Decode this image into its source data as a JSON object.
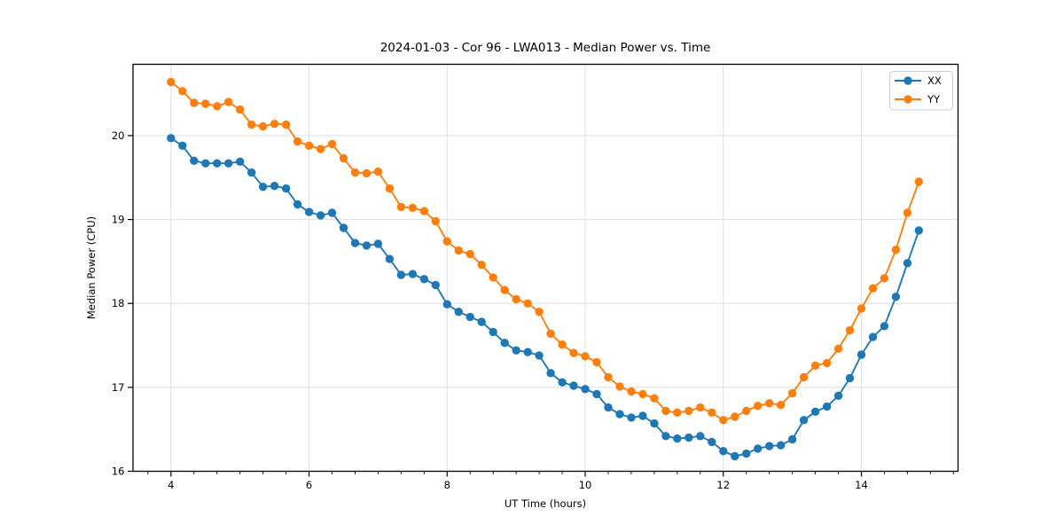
{
  "chart_data": {
    "type": "line",
    "title": "2024-01-03 - Cor 96 - LWA013 - Median Power vs. Time",
    "xlabel": "UT Time (hours)",
    "ylabel": "Median Power (CPU)",
    "xlim": [
      3.45,
      15.4
    ],
    "ylim": [
      16.0,
      20.85
    ],
    "x_major_ticks": [
      4,
      6,
      8,
      10,
      12,
      14
    ],
    "x_minor_tick_step": 0.33333,
    "y_major_ticks": [
      16,
      17,
      18,
      19,
      20
    ],
    "grid": true,
    "grid_color": "#e2e2e2",
    "legend_position": "upper right",
    "marker": "circle",
    "x": [
      4.0,
      4.167,
      4.333,
      4.5,
      4.667,
      4.833,
      5.0,
      5.167,
      5.333,
      5.5,
      5.667,
      5.833,
      6.0,
      6.167,
      6.333,
      6.5,
      6.667,
      6.833,
      7.0,
      7.167,
      7.333,
      7.5,
      7.667,
      7.833,
      8.0,
      8.167,
      8.333,
      8.5,
      8.667,
      8.833,
      9.0,
      9.167,
      9.333,
      9.5,
      9.667,
      9.833,
      10.0,
      10.167,
      10.333,
      10.5,
      10.667,
      10.833,
      11.0,
      11.167,
      11.333,
      11.5,
      11.667,
      11.833,
      12.0,
      12.167,
      12.333,
      12.5,
      12.667,
      12.833,
      13.0,
      13.167,
      13.333,
      13.5,
      13.667,
      13.833,
      14.0,
      14.167,
      14.333,
      14.5,
      14.667,
      14.833
    ],
    "series": [
      {
        "name": "XX",
        "color": "#1f77b4",
        "values": [
          19.97,
          19.88,
          19.7,
          19.67,
          19.67,
          19.67,
          19.69,
          19.56,
          19.39,
          19.4,
          19.37,
          19.18,
          19.09,
          19.05,
          19.08,
          18.9,
          18.72,
          18.69,
          18.71,
          18.53,
          18.34,
          18.35,
          18.29,
          18.22,
          17.99,
          17.9,
          17.84,
          17.78,
          17.66,
          17.53,
          17.44,
          17.42,
          17.38,
          17.17,
          17.06,
          17.02,
          16.98,
          16.92,
          16.76,
          16.68,
          16.64,
          16.66,
          16.57,
          16.42,
          16.39,
          16.4,
          16.42,
          16.35,
          16.24,
          16.18,
          16.21,
          16.27,
          16.3,
          16.31,
          16.38,
          16.61,
          16.71,
          16.77,
          16.9,
          17.11,
          17.39,
          17.6,
          17.73,
          18.08,
          18.48,
          18.87
        ]
      },
      {
        "name": "YY",
        "color": "#ff7f0e",
        "values": [
          20.64,
          20.53,
          20.39,
          20.38,
          20.35,
          20.4,
          20.31,
          20.13,
          20.11,
          20.14,
          20.13,
          19.93,
          19.88,
          19.84,
          19.9,
          19.73,
          19.56,
          19.55,
          19.57,
          19.37,
          19.15,
          19.14,
          19.1,
          18.98,
          18.74,
          18.63,
          18.59,
          18.46,
          18.31,
          18.16,
          18.05,
          18.0,
          17.9,
          17.64,
          17.51,
          17.41,
          17.37,
          17.3,
          17.12,
          17.01,
          16.95,
          16.92,
          16.87,
          16.72,
          16.7,
          16.72,
          16.76,
          16.7,
          16.61,
          16.65,
          16.72,
          16.78,
          16.81,
          16.79,
          16.93,
          17.12,
          17.26,
          17.29,
          17.46,
          17.68,
          17.94,
          18.18,
          18.3,
          18.64,
          19.08,
          19.45
        ]
      }
    ]
  }
}
